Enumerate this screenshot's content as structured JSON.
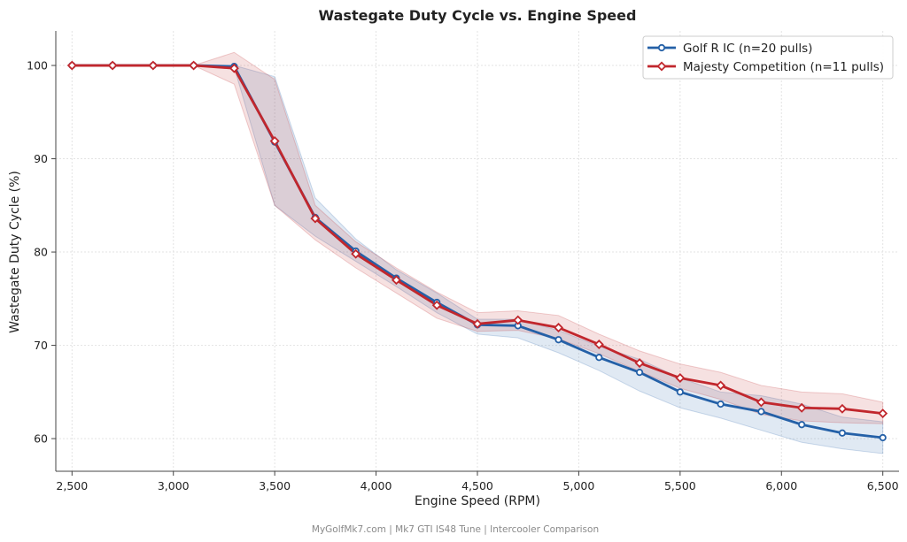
{
  "chart_data": {
    "type": "line",
    "title": "Wastegate Duty Cycle vs. Engine Speed",
    "xlabel": "Engine Speed (RPM)",
    "ylabel": "Wastegate Duty Cycle (%)",
    "xlim": [
      2420,
      6580
    ],
    "ylim": [
      56.5,
      103.7
    ],
    "xticks": [
      2500,
      3000,
      3500,
      4000,
      4500,
      5000,
      5500,
      6000,
      6500
    ],
    "xtick_labels": [
      "2,500",
      "3,000",
      "3,500",
      "4,000",
      "4,500",
      "5,000",
      "5,500",
      "6,000",
      "6,500"
    ],
    "yticks": [
      60,
      70,
      80,
      90,
      100
    ],
    "ytick_labels": [
      "60",
      "70",
      "80",
      "90",
      "100"
    ],
    "grid": true,
    "legend_position": "top-right",
    "x": [
      2500,
      2700,
      2900,
      3100,
      3300,
      3500,
      3700,
      3900,
      4100,
      4300,
      4500,
      4700,
      4900,
      5100,
      5300,
      5500,
      5700,
      5900,
      6100,
      6300,
      6500
    ],
    "series": [
      {
        "name": "Golf R IC (n=20 pulls)",
        "color": "#2460a7",
        "marker": "circle",
        "values": [
          100,
          100,
          100,
          100,
          99.9,
          91.8,
          83.7,
          80.1,
          77.2,
          74.6,
          72.2,
          72.1,
          70.6,
          68.7,
          67.1,
          65.0,
          63.7,
          62.9,
          61.5,
          60.6,
          60.1
        ],
        "lower": [
          100,
          100,
          100,
          100,
          99.8,
          85.0,
          81.7,
          79.0,
          76.3,
          73.5,
          71.2,
          70.8,
          69.2,
          67.3,
          65.1,
          63.3,
          62.2,
          60.9,
          59.6,
          58.9,
          58.4
        ],
        "upper": [
          100,
          100,
          100,
          100,
          100.0,
          98.8,
          85.8,
          81.4,
          78.1,
          75.6,
          72.8,
          72.8,
          71.6,
          69.9,
          68.5,
          66.5,
          65.0,
          64.6,
          63.7,
          62.3,
          61.8
        ]
      },
      {
        "name": "Majesty Competition (n=11 pulls)",
        "color": "#c1272d",
        "marker": "diamond",
        "values": [
          100,
          100,
          100,
          100,
          99.7,
          91.9,
          83.6,
          79.8,
          77.0,
          74.3,
          72.3,
          72.7,
          71.9,
          70.1,
          68.1,
          66.5,
          65.7,
          63.9,
          63.3,
          63.2,
          62.7
        ],
        "lower": [
          100,
          100,
          100,
          100,
          98.0,
          85.0,
          81.3,
          78.3,
          75.6,
          72.9,
          71.5,
          71.6,
          70.7,
          69.1,
          67.2,
          65.4,
          64.2,
          62.6,
          61.9,
          61.7,
          61.6
        ],
        "upper": [
          100,
          100,
          100,
          100,
          101.4,
          98.5,
          85.0,
          81.1,
          78.3,
          75.7,
          73.5,
          73.7,
          73.2,
          71.2,
          69.4,
          68.0,
          67.1,
          65.7,
          65.0,
          64.8,
          63.9
        ]
      }
    ]
  },
  "footer": "MyGolfMk7.com  |  Mk7 GTI IS48 Tune  |  Intercooler Comparison"
}
